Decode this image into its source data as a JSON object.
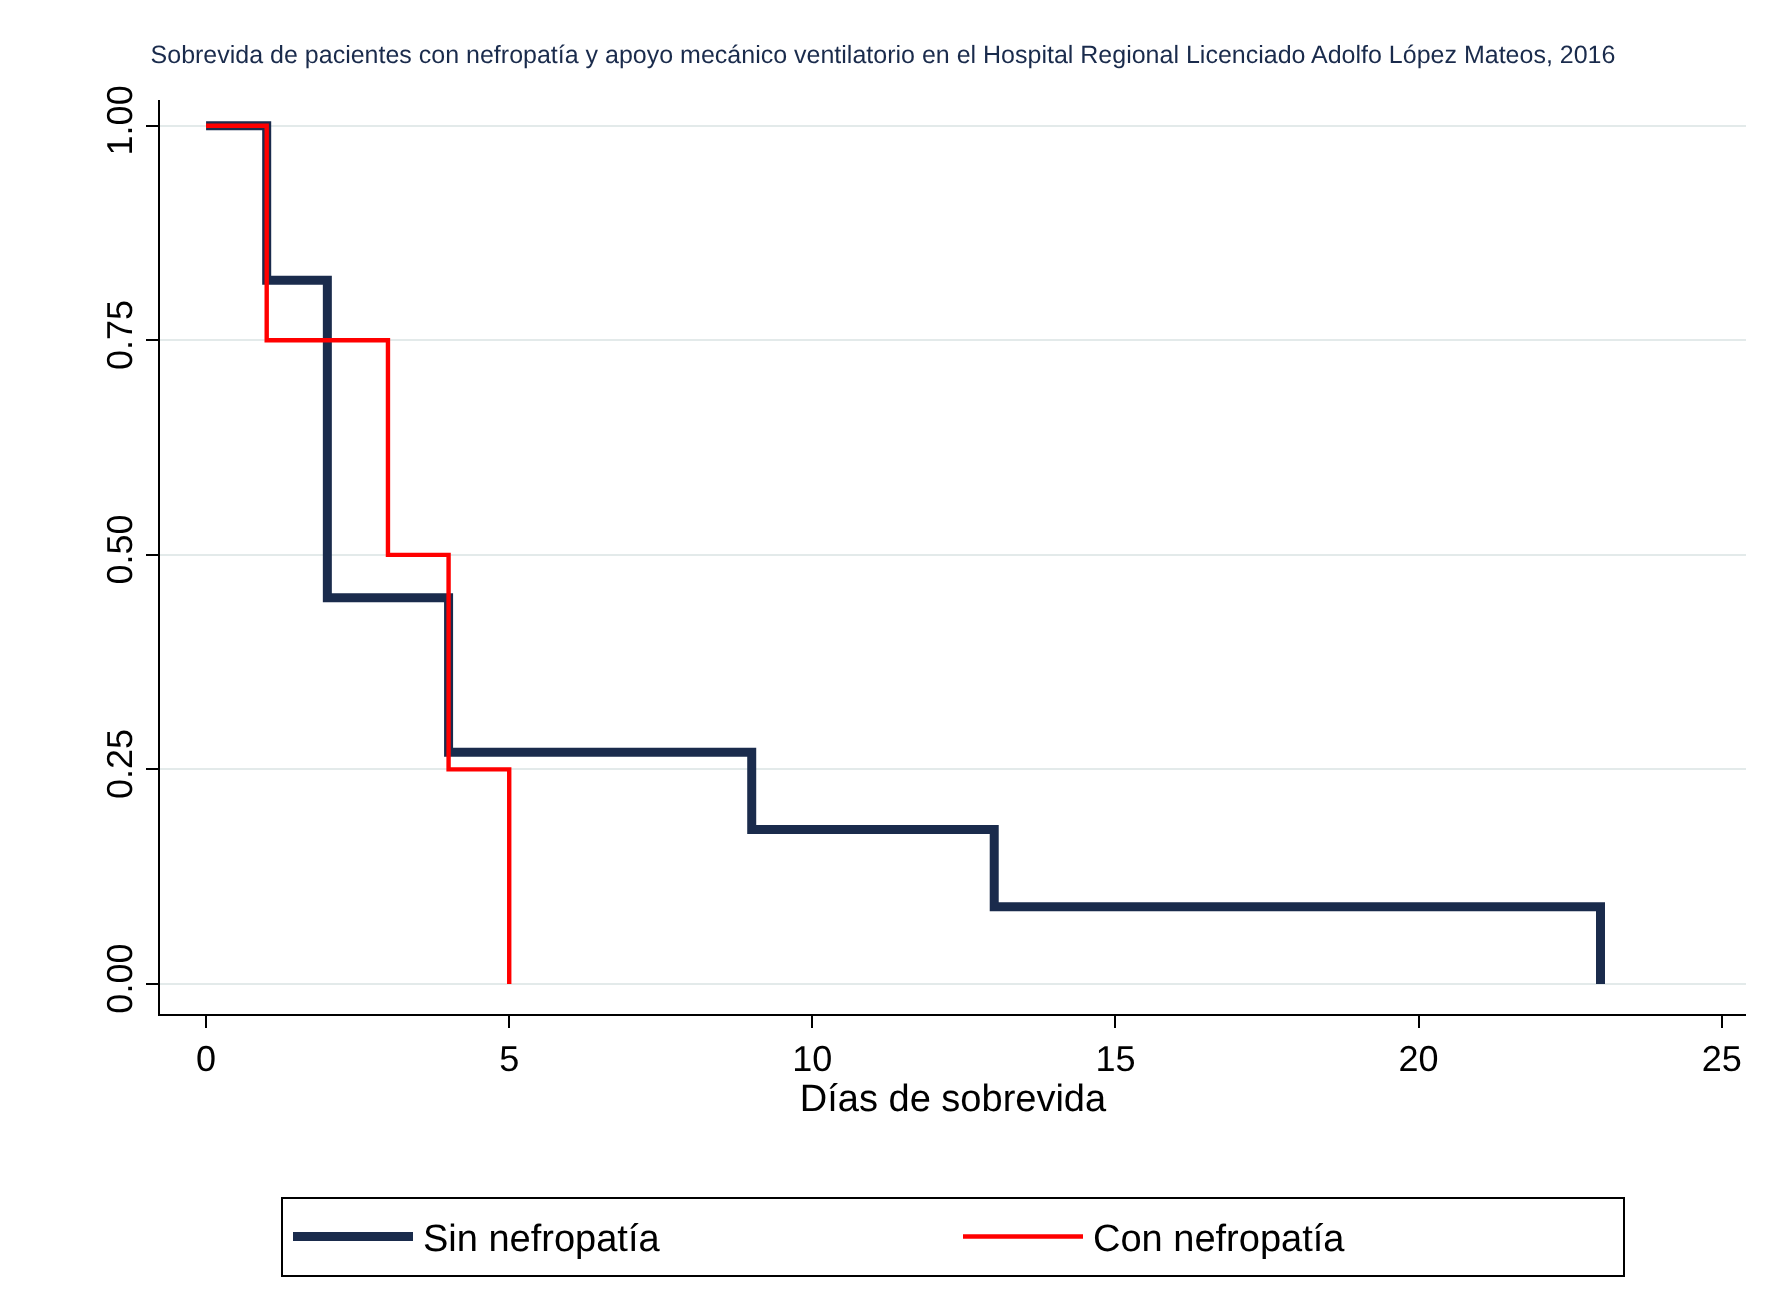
{
  "chart_data": {
    "type": "step",
    "title": "Sobrevida de pacientes con nefropatía y apoyo mecánico ventilatorio en el Hospital Regional Licenciado Adolfo López Mateos, 2016",
    "xlabel": "Días de sobrevida",
    "series": [
      {
        "name": "Sin nefropatía",
        "color": "#1a2b4c",
        "x": [
          0,
          1,
          2,
          4,
          9,
          13,
          23
        ],
        "values": [
          1,
          0.82,
          0.45,
          0.27,
          0.18,
          0.09,
          0
        ]
      },
      {
        "name": "Con nefropatía",
        "color": "#ff0000",
        "x": [
          0,
          1,
          3,
          4,
          5
        ],
        "values": [
          1,
          0.75,
          0.5,
          0.25,
          0
        ]
      }
    ],
    "xlim": [
      -0.76,
      25.4
    ],
    "ylim": [
      -0.035,
      1.03
    ],
    "xticks": [
      0,
      5,
      10,
      15,
      20,
      25
    ],
    "yticks": [
      {
        "value": 0,
        "label": "0.00"
      },
      {
        "value": 0.25,
        "label": "0.25"
      },
      {
        "value": 0.5,
        "label": "0.50"
      },
      {
        "value": 0.75,
        "label": "0.75"
      },
      {
        "value": 1,
        "label": "1.00"
      }
    ],
    "grid": "y",
    "legend": "bottom",
    "marker": "none",
    "line_style": "solid"
  }
}
